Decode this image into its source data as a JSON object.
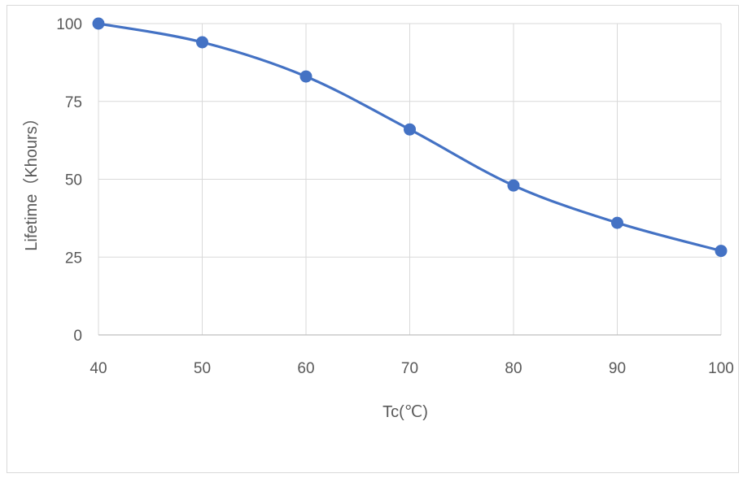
{
  "chart_data": {
    "type": "line",
    "title": "",
    "xlabel": "Tc(℃)",
    "ylabel": "Lifetime（Khours）",
    "x": [
      40,
      50,
      60,
      70,
      80,
      90,
      100
    ],
    "x_tick_labels": [
      "40",
      "50",
      "60",
      "70",
      "80",
      "90",
      "100"
    ],
    "y_tick_labels": [
      "0",
      "25",
      "50",
      "75",
      "100"
    ],
    "y_ticks": [
      0,
      25,
      50,
      75,
      100
    ],
    "series": [
      {
        "values": [
          100,
          94,
          83,
          66,
          48,
          36,
          27
        ]
      }
    ],
    "xlim": [
      40,
      100
    ],
    "ylim": [
      0,
      100
    ],
    "grid": true,
    "smooth": true,
    "legend": "none",
    "colors": {
      "line": "#4472C4",
      "grid": "#d9d9d9",
      "axis": "#bfbfbf"
    }
  }
}
